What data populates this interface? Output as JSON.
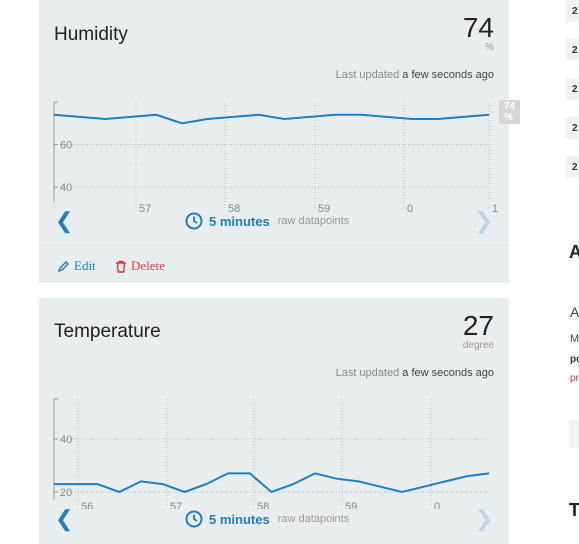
{
  "humidity": {
    "title": "Humidity",
    "value": "74",
    "unit": "%",
    "updated_prefix": "Last updated",
    "updated_time": "a few seconds ago",
    "y_ticks": [
      "60",
      "40"
    ],
    "x_ticks": [
      "57",
      "58",
      "59",
      "0",
      "1"
    ],
    "current_badge": "74 %",
    "series": [
      74,
      73,
      72,
      73,
      74,
      70,
      72,
      73,
      74,
      72,
      73,
      74,
      74,
      73,
      72,
      72,
      73,
      74
    ],
    "period": "5 minutes",
    "period_sub": "raw datapoints",
    "edit_label": "Edit",
    "delete_label": "Delete"
  },
  "temperature": {
    "title": "Temperature",
    "value": "27",
    "unit": "degree",
    "updated_prefix": "Last updated",
    "updated_time": "a few seconds ago",
    "y_ticks": [
      "40",
      "20"
    ],
    "x_ticks": [
      "56",
      "57",
      "58",
      "59",
      "0"
    ],
    "series": [
      23,
      23,
      23,
      20,
      24,
      23,
      20,
      23,
      27,
      27,
      20,
      23,
      27,
      25,
      24,
      22,
      20,
      22,
      24,
      26,
      27
    ],
    "period": "5 minutes",
    "period_sub": "raw datapoints"
  },
  "right_column": {
    "items": [
      "2",
      "2",
      "2",
      "2",
      "2"
    ],
    "heading_a": "A",
    "text_a": "A",
    "text_m": "M",
    "text_po": "po",
    "text_pr": "pr",
    "heading_t": "T"
  }
}
